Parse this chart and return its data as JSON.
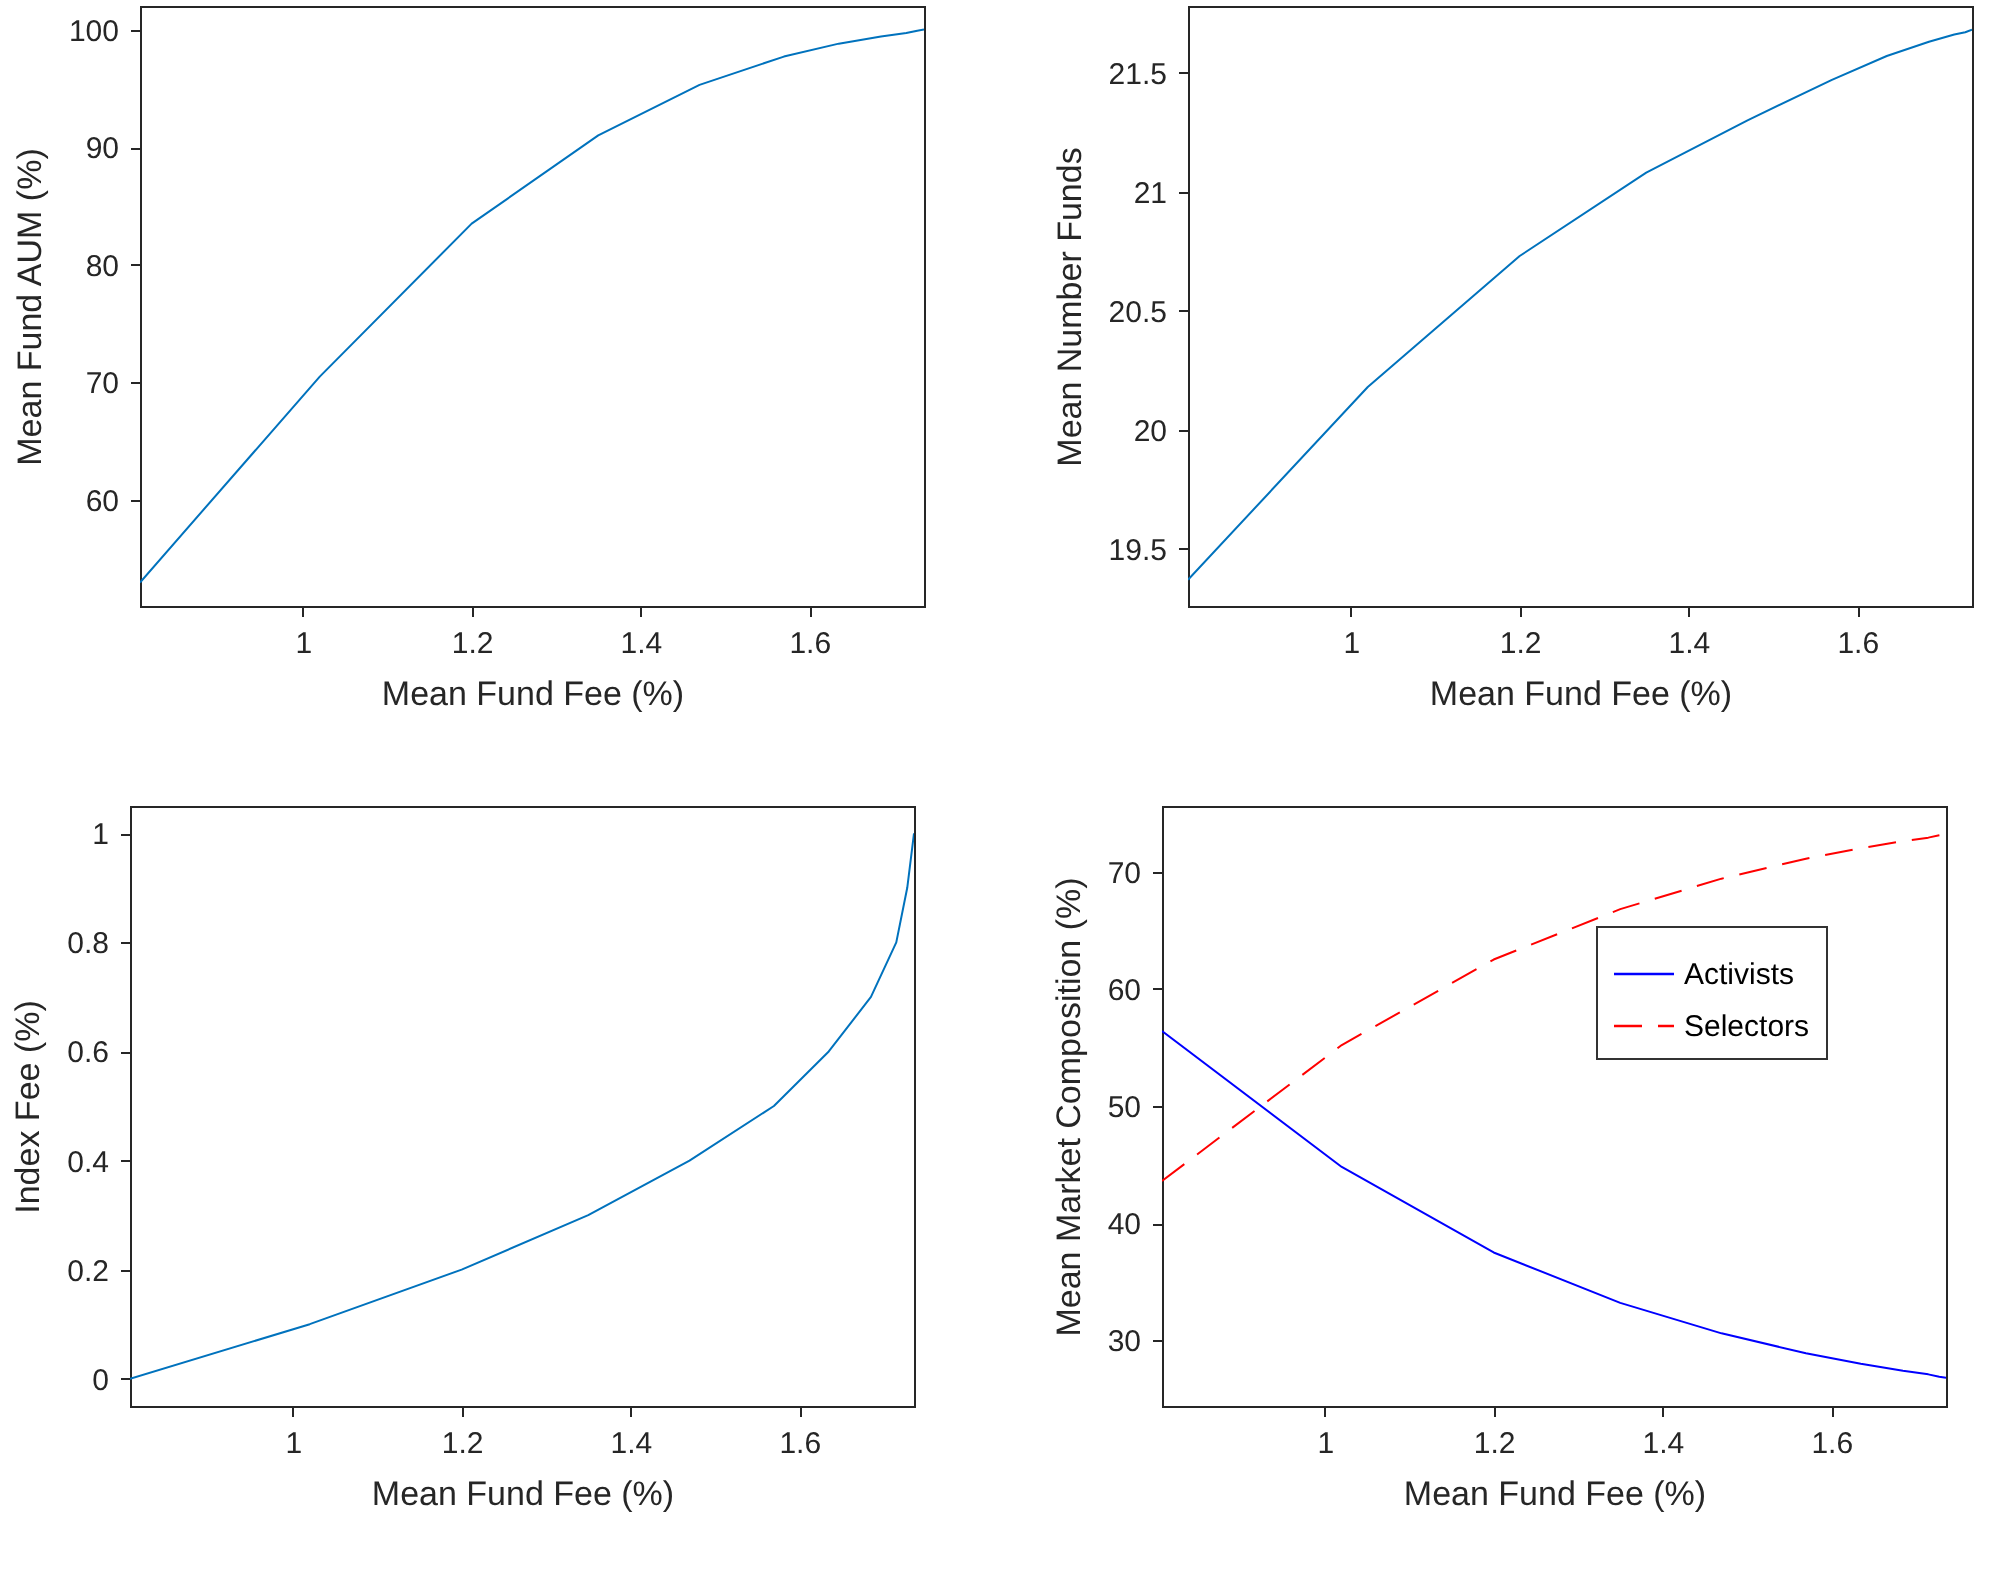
{
  "chart_data": [
    {
      "type": "line",
      "xlabel": "Mean Fund Fee (%)",
      "ylabel": "Mean Fund AUM (%)",
      "xlim": [
        0.807,
        1.736
      ],
      "xticks": [
        1,
        1.2,
        1.4,
        1.6
      ],
      "ylim": [
        51,
        102
      ],
      "yticks": [
        60,
        70,
        80,
        90,
        100
      ],
      "x": [
        0.807,
        1.02,
        1.2,
        1.35,
        1.47,
        1.57,
        1.635,
        1.685,
        1.715,
        1.728,
        1.736
      ],
      "series": [
        {
          "color": "#0072bd",
          "values": [
            53,
            70.5,
            83.5,
            91,
            95.3,
            97.7,
            98.8,
            99.4,
            99.7,
            99.9,
            100
          ]
        }
      ]
    },
    {
      "type": "line",
      "xlabel": "Mean Fund Fee (%)",
      "ylabel": "Mean Number Funds",
      "xlim": [
        0.807,
        1.736
      ],
      "xticks": [
        1,
        1.2,
        1.4,
        1.6
      ],
      "ylim": [
        19.26,
        21.78
      ],
      "yticks": [
        19.5,
        20,
        20.5,
        21,
        21.5
      ],
      "x": [
        0.807,
        1.02,
        1.2,
        1.35,
        1.47,
        1.57,
        1.635,
        1.685,
        1.715,
        1.728,
        1.736
      ],
      "series": [
        {
          "color": "#0072bd",
          "values": [
            19.37,
            20.18,
            20.73,
            21.08,
            21.3,
            21.47,
            21.57,
            21.63,
            21.66,
            21.67,
            21.68
          ]
        }
      ]
    },
    {
      "type": "line",
      "xlabel": "Mean Fund Fee (%)",
      "ylabel": "Index Fee (%)",
      "xlim": [
        0.807,
        1.736
      ],
      "xticks": [
        1,
        1.2,
        1.4,
        1.6
      ],
      "ylim": [
        -0.05,
        1.05
      ],
      "yticks": [
        0,
        0.2,
        0.4,
        0.6,
        0.8,
        1
      ],
      "x": [
        0.807,
        1.02,
        1.2,
        1.35,
        1.47,
        1.57,
        1.635,
        1.685,
        1.715,
        1.728,
        1.736
      ],
      "series": [
        {
          "color": "#0072bd",
          "values": [
            0,
            0.1,
            0.2,
            0.3,
            0.4,
            0.5,
            0.6,
            0.7,
            0.8,
            0.9,
            1
          ]
        }
      ]
    },
    {
      "type": "line",
      "xlabel": "Mean Fund Fee (%)",
      "ylabel": "Mean Market Composition (%)",
      "xlim": [
        0.807,
        1.736
      ],
      "xticks": [
        1,
        1.2,
        1.4,
        1.6
      ],
      "ylim": [
        24.4,
        75.6
      ],
      "yticks": [
        30,
        40,
        50,
        60,
        70
      ],
      "legend": "top right",
      "x": [
        0.807,
        1.02,
        1.2,
        1.35,
        1.47,
        1.57,
        1.635,
        1.685,
        1.715,
        1.728,
        1.736
      ],
      "series": [
        {
          "name": "Activists",
          "color": "#0000ff",
          "line_style": "solid",
          "values": [
            56.4,
            44.8,
            37.5,
            33.2,
            30.6,
            28.9,
            28.0,
            27.4,
            27.1,
            26.9,
            26.8
          ]
        },
        {
          "name": "Selectors",
          "color": "#ff0000",
          "line_style": "dashed",
          "values": [
            43.6,
            55.2,
            62.5,
            66.8,
            69.4,
            71.1,
            72.0,
            72.6,
            72.9,
            73.1,
            73.2
          ]
        }
      ]
    }
  ]
}
